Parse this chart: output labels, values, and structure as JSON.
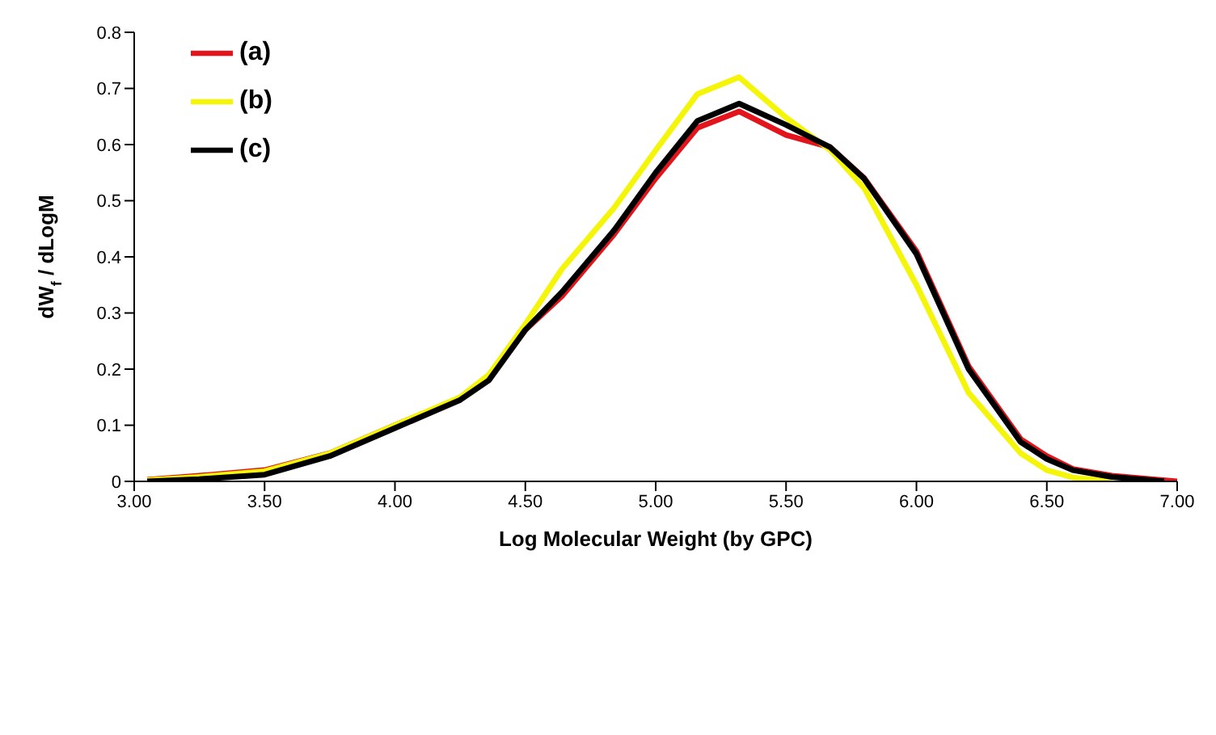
{
  "chart_data": {
    "type": "line",
    "xlabel": "Log Molecular Weight (by GPC)",
    "ylabel": "dW$_{f}$ / dLogM",
    "xlim": [
      3,
      7
    ],
    "xticks": [
      {
        "value": 3,
        "label": "3.00"
      },
      {
        "value": 3.5,
        "label": "3.50"
      },
      {
        "value": 4,
        "label": "4.00"
      },
      {
        "value": 4.5,
        "label": "4.50"
      },
      {
        "value": 5,
        "label": "5.00"
      },
      {
        "value": 5.5,
        "label": "5.50"
      },
      {
        "value": 6,
        "label": "6.00"
      },
      {
        "value": 6.5,
        "label": "6.50"
      },
      {
        "value": 7,
        "label": "7.00"
      }
    ],
    "ylim": [
      0,
      0.8
    ],
    "yticks": [
      0,
      0.1,
      0.2,
      0.3,
      0.4,
      0.5,
      0.6,
      0.7,
      0.8
    ],
    "grid": false,
    "legend": "top left",
    "marker": "none",
    "line_style": "solid",
    "series": [
      {
        "name": "(a)",
        "color": "#e3141b",
        "x": [
          3.05,
          3.25,
          3.5,
          3.75,
          4.0,
          4.25,
          4.36,
          4.5,
          4.64,
          4.84,
          5.0,
          5.16,
          5.32,
          5.5,
          5.67,
          5.8,
          6.0,
          6.2,
          6.4,
          6.5,
          6.6,
          6.75,
          6.9,
          7.0
        ],
        "values": [
          0.003,
          0.01,
          0.02,
          0.05,
          0.1,
          0.148,
          0.182,
          0.27,
          0.33,
          0.44,
          0.54,
          0.63,
          0.659,
          0.617,
          0.595,
          0.54,
          0.41,
          0.205,
          0.075,
          0.045,
          0.022,
          0.01,
          0.004,
          0
        ]
      },
      {
        "name": "(b)",
        "color": "#f5f50a",
        "x": [
          3.05,
          3.25,
          3.5,
          3.75,
          4.0,
          4.25,
          4.36,
          4.5,
          4.64,
          4.84,
          5.0,
          5.16,
          5.32,
          5.5,
          5.67,
          5.8,
          6.0,
          6.2,
          6.4,
          6.5,
          6.6,
          6.75
        ],
        "values": [
          0.002,
          0.008,
          0.018,
          0.05,
          0.1,
          0.15,
          0.19,
          0.28,
          0.378,
          0.487,
          0.59,
          0.69,
          0.72,
          0.648,
          0.59,
          0.522,
          0.35,
          0.158,
          0.05,
          0.02,
          0.007,
          0
        ]
      },
      {
        "name": "(c)",
        "color": "#000000",
        "x": [
          3.05,
          3.25,
          3.5,
          3.75,
          4.0,
          4.25,
          4.36,
          4.5,
          4.64,
          4.84,
          5.0,
          5.16,
          5.32,
          5.5,
          5.67,
          5.8,
          6.0,
          6.2,
          6.4,
          6.5,
          6.6,
          6.75,
          6.9,
          6.95
        ],
        "values": [
          0,
          0.004,
          0.012,
          0.045,
          0.095,
          0.145,
          0.18,
          0.27,
          0.337,
          0.447,
          0.55,
          0.642,
          0.673,
          0.635,
          0.595,
          0.539,
          0.405,
          0.2,
          0.07,
          0.04,
          0.02,
          0.008,
          0.002,
          0
        ]
      }
    ]
  }
}
